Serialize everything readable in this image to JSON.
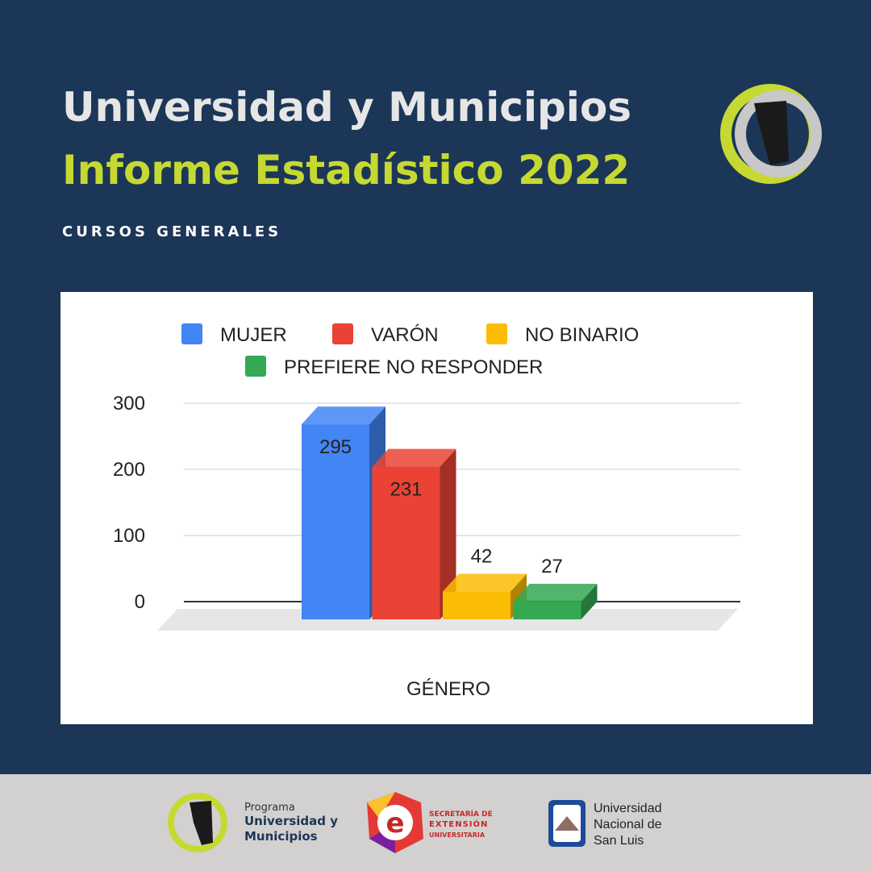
{
  "header": {
    "title": "Universidad y Municipios",
    "subtitle": "Informe Estadístico 2022",
    "section": "CURSOS GENERALES"
  },
  "chart_data": {
    "type": "bar3d",
    "x_label": "GÉNERO",
    "series": [
      {
        "name": "MUJER",
        "color": "#4285f4",
        "values": [
          295
        ]
      },
      {
        "name": "VARÓN",
        "color": "#ea4335",
        "values": [
          231
        ]
      },
      {
        "name": "NO BINARIO",
        "color": "#fbbc04",
        "values": [
          42
        ]
      },
      {
        "name": "PREFIERE NO RESPONDER",
        "color": "#34a853",
        "values": [
          27
        ]
      }
    ],
    "ylim": [
      0,
      300
    ],
    "yticks": [
      0,
      100,
      200,
      300
    ],
    "grid": true
  },
  "footer": {
    "program": [
      "Programa",
      "Universidad y",
      "Municipios"
    ],
    "secretaria": [
      "SECRETARÍA DE",
      "EXTENSIÓN",
      "UNIVERSITARIA"
    ],
    "university": [
      "Universidad",
      "Nacional de",
      "San Luis"
    ]
  }
}
